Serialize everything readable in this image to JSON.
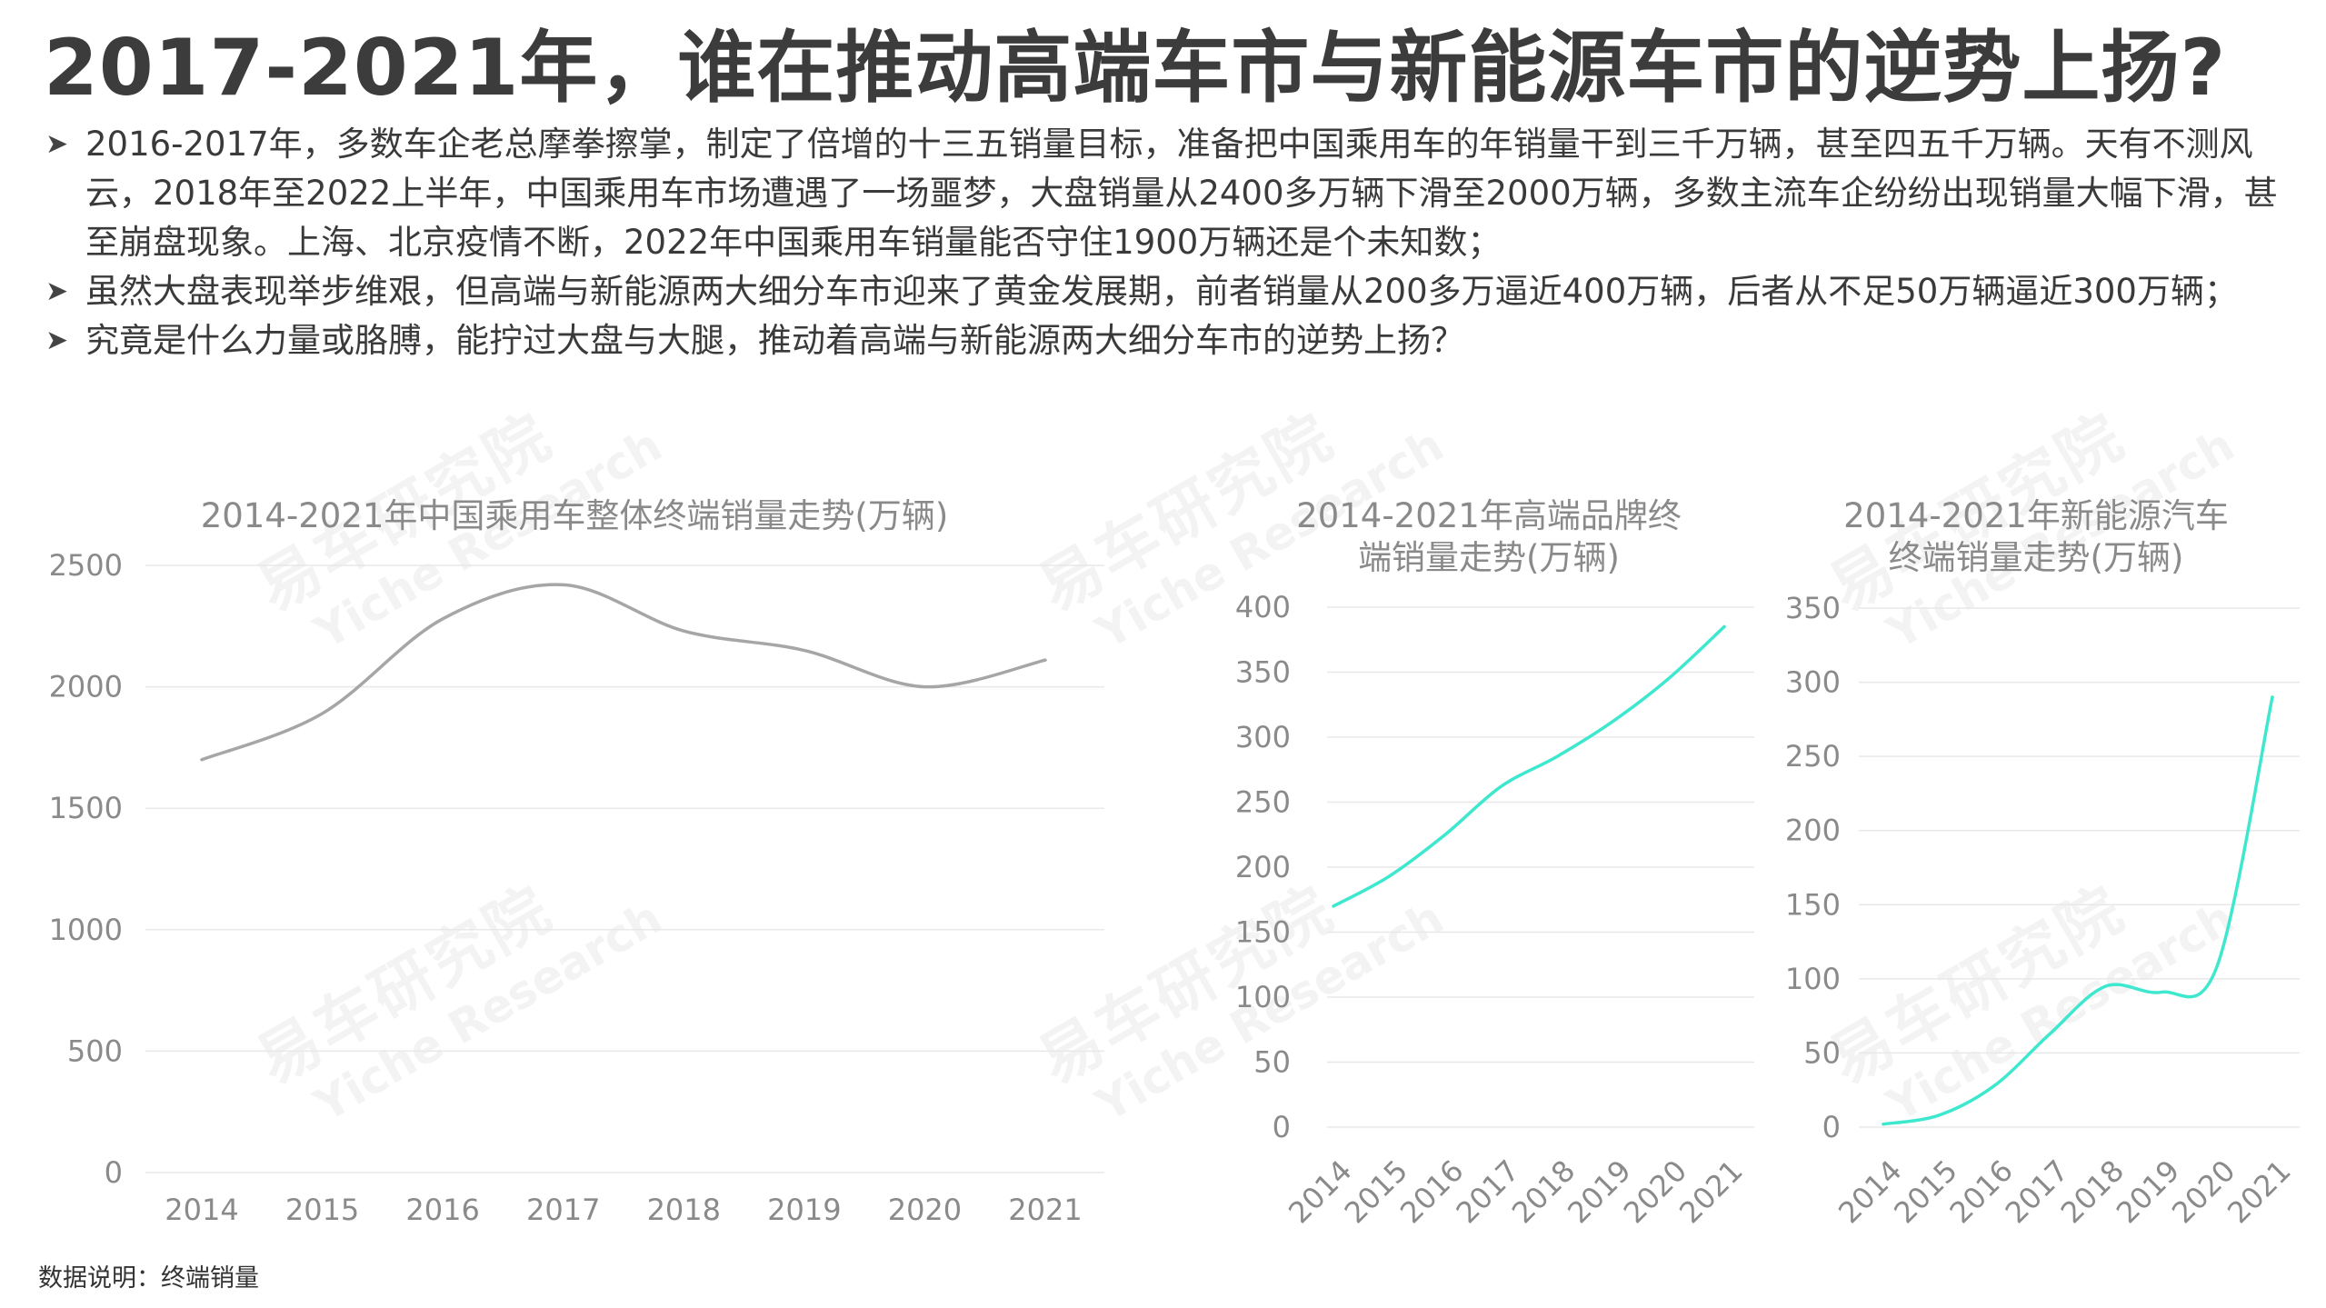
{
  "title": "2017-2021年，谁在推动高端车市与新能源车市的逆势上扬?",
  "bullets": [
    "2016-2017年，多数车企老总摩拳擦掌，制定了倍增的十三五销量目标，准备把中国乘用车的年销量干到三千万辆，甚至四五千万辆。天有不测风云，2018年至2022上半年，中国乘用车市场遭遇了一场噩梦，大盘销量从2400多万辆下滑至2000万辆，多数主流车企纷纷出现销量大幅下滑，甚至崩盘现象。上海、北京疫情不断，2022年中国乘用车销量能否守住1900万辆还是个未知数；",
    "虽然大盘表现举步维艰，但高端与新能源两大细分车市迎来了黄金发展期，前者销量从200多万逼近400万辆，后者从不足50万辆逼近300万辆；",
    "究竟是什么力量或胳膊，能拧过大盘与大腿，推动着高端与新能源两大细分车市的逆势上扬？"
  ],
  "bullet_icon": "arrow-right-icon",
  "footnote": "数据说明：终端销量",
  "watermark": {
    "cn": "易车研究院",
    "en": "Yiche Research"
  },
  "colors": {
    "overall": "#a6a6a6",
    "premium": "#3ee8cf",
    "nev": "#3ee8cf"
  },
  "chart_data": [
    {
      "type": "line",
      "title": "2014-2021年中国乘用车整体终端销量走势(万辆)",
      "categories": [
        "2014",
        "2015",
        "2016",
        "2017",
        "2018",
        "2019",
        "2020",
        "2021"
      ],
      "series": [
        {
          "values": [
            1700,
            1890,
            2280,
            2420,
            2230,
            2150,
            2000,
            2110
          ]
        }
      ],
      "ylim": [
        0,
        2500
      ],
      "yticks": [
        0,
        500,
        1000,
        1500,
        2000,
        2500
      ],
      "grid": true,
      "smooth": true
    },
    {
      "type": "line",
      "title": "2014-2021年高端品牌终端销量走势(万辆)",
      "title_lines": [
        "2014-2021年高端品牌终",
        "端销量走势(万辆)"
      ],
      "categories": [
        "2014",
        "2015",
        "2016",
        "2017",
        "2018",
        "2019",
        "2020",
        "2021"
      ],
      "series": [
        {
          "values": [
            170,
            193,
            225,
            262,
            285,
            312,
            345,
            385
          ]
        }
      ],
      "ylim": [
        0,
        400
      ],
      "yticks": [
        0,
        50,
        100,
        150,
        200,
        250,
        300,
        350,
        400
      ],
      "grid": true,
      "smooth": true,
      "rotate_x_labels": true
    },
    {
      "type": "line",
      "title": "2014-2021年新能源汽车终端销量走势(万辆)",
      "title_lines": [
        "2014-2021年新能源汽车",
        "终端销量走势(万辆)"
      ],
      "categories": [
        "2014",
        "2015",
        "2016",
        "2017",
        "2018",
        "2019",
        "2020",
        "2021"
      ],
      "series": [
        {
          "values": [
            2,
            8,
            28,
            63,
            95,
            91,
            108,
            290
          ]
        }
      ],
      "ylim": [
        0,
        350
      ],
      "yticks": [
        0,
        50,
        100,
        150,
        200,
        250,
        300,
        350
      ],
      "grid": true,
      "smooth": true,
      "rotate_x_labels": true
    }
  ]
}
